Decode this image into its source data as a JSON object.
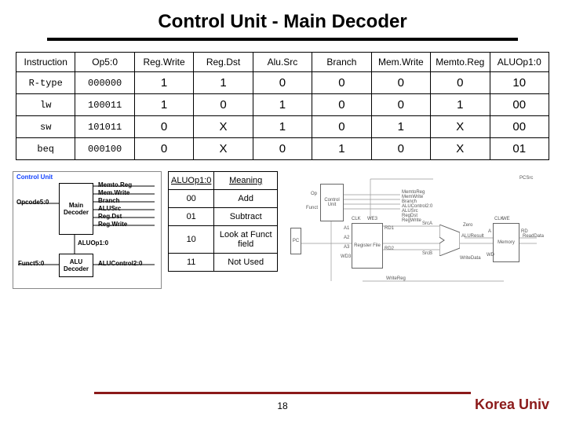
{
  "title": "Control Unit - Main Decoder",
  "colors": {
    "accent": "#8b1a1a",
    "link_blue": "#1040ff"
  },
  "main_table": {
    "headers": [
      "Instruction",
      "Op5:0",
      "Reg.Write",
      "Reg.Dst",
      "Alu.Src",
      "Branch",
      "Mem.Write",
      "Memto.Reg",
      "ALUOp1:0"
    ],
    "rows": [
      {
        "instr": "R-type",
        "op": "000000",
        "cells": [
          "1",
          "1",
          "0",
          "0",
          "0",
          "0",
          "10"
        ]
      },
      {
        "instr": "lw",
        "op": "100011",
        "cells": [
          "1",
          "0",
          "1",
          "0",
          "0",
          "1",
          "00"
        ]
      },
      {
        "instr": "sw",
        "op": "101011",
        "cells": [
          "0",
          "X",
          "1",
          "0",
          "1",
          "X",
          "00"
        ]
      },
      {
        "instr": "beq",
        "op": "000100",
        "cells": [
          "0",
          "X",
          "0",
          "1",
          "0",
          "X",
          "01"
        ]
      }
    ]
  },
  "aluop_table": {
    "headers": [
      "ALUOp1:0",
      "Meaning"
    ],
    "rows": [
      [
        "00",
        "Add"
      ],
      [
        "01",
        "Subtract"
      ],
      [
        "10",
        "Look at Funct field"
      ],
      [
        "11",
        "Not Used"
      ]
    ]
  },
  "control_diagram": {
    "title": "Control Unit",
    "main_box": "Main Decoder",
    "alu_box": "ALU Decoder",
    "left_inputs": [
      "Opcode5:0",
      "Funct5:0"
    ],
    "right_outputs": [
      "Memto.Reg",
      "Mem.Write",
      "Branch",
      "ALUSrc",
      "Reg.Dst",
      "Reg.Write"
    ],
    "inter": "ALUOp1:0",
    "bottom_out": "ALUControl2:0"
  },
  "datapath": {
    "top_signals": [
      "MemtoReg",
      "MemWrite",
      "Branch",
      "ALUControl2:0",
      "ALUSrc",
      "RegDst",
      "RegWrite"
    ],
    "blocks": {
      "cu": "Control Unit",
      "rf": "Register File",
      "alu": "ALU",
      "mem": "Memory",
      "pc": "PC"
    },
    "labels": [
      "Op",
      "Funct",
      "CLK",
      "A1",
      "A2",
      "A3",
      "WD3",
      "RD1",
      "RD2",
      "WE3",
      "SrcA",
      "SrcB",
      "Zero",
      "ALUResult",
      "WriteData",
      "A",
      "RD",
      "WD",
      "WE",
      "ReadData",
      "WriteReg",
      "PCSrc"
    ]
  },
  "page_number": "18",
  "footer": "Korea Univ"
}
